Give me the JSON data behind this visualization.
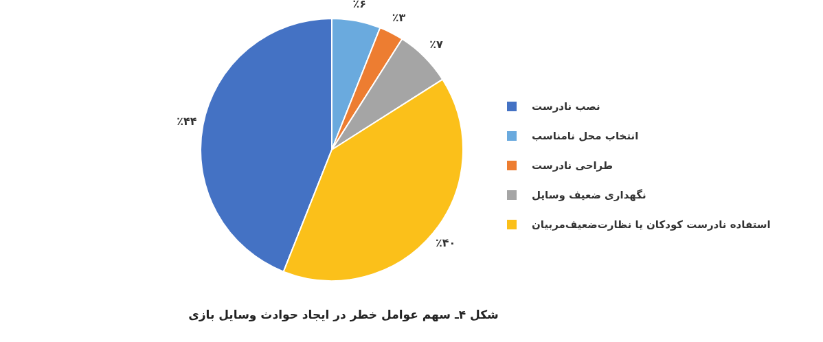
{
  "chart_data": {
    "type": "pie",
    "title": "شکل ۴ـ سهم عوامل خطر در ایجاد حوادث وسایل بازی",
    "categories": [
      "نصب نادرست",
      "انتخاب محل نامناسب",
      "طراحی نادرست",
      "نگهداری ضعیف وسایل",
      "استفاده نادرست کودکان یا نظارت‌ضعیف‌مربیان"
    ],
    "values": [
      44,
      6,
      3,
      7,
      40
    ],
    "value_labels": [
      "٪۴۴",
      "٪۶",
      "٪۳",
      "٪۷",
      "٪۴۰"
    ],
    "colors": [
      "#4472c4",
      "#6aaade",
      "#ed7d31",
      "#a5a5a5",
      "#fbc01a"
    ],
    "legend": "right"
  }
}
